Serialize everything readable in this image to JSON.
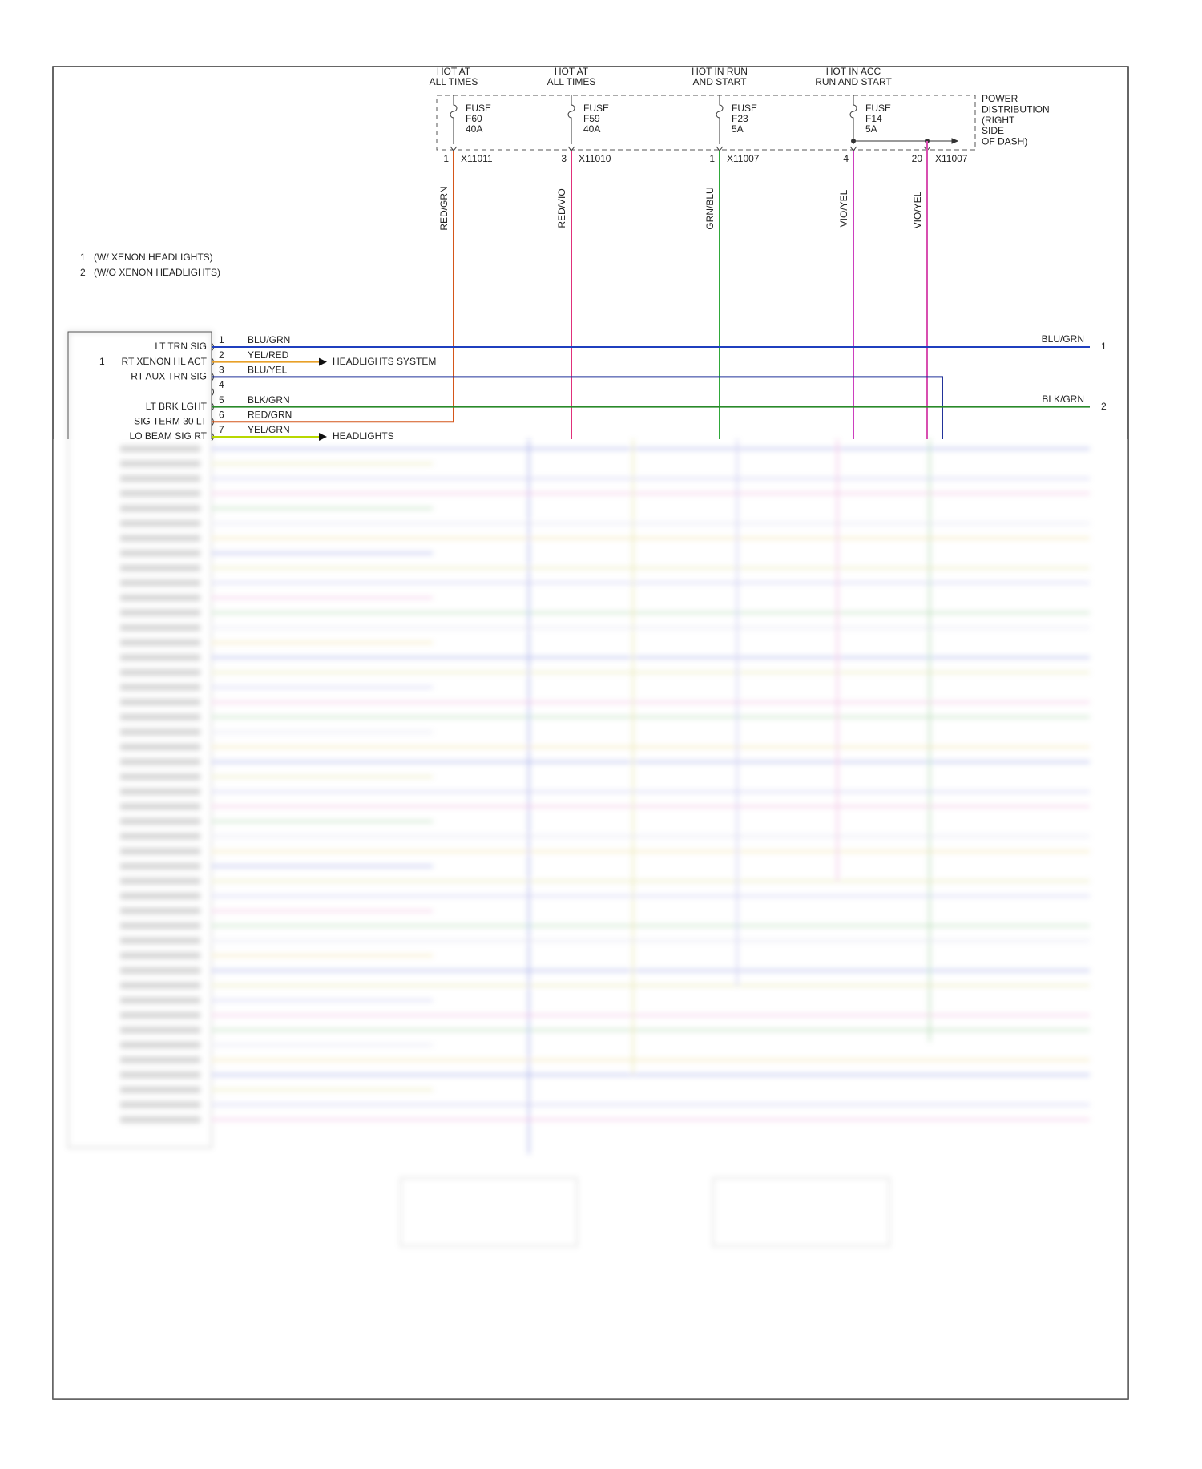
{
  "fuse_columns": [
    {
      "header": [
        "HOT AT",
        "ALL TIMES"
      ],
      "fuse": [
        "FUSE",
        "F60",
        "40A"
      ],
      "pin": "1",
      "connector": "X11011",
      "wire": "RED/GRN"
    },
    {
      "header": [
        "HOT AT",
        "ALL TIMES"
      ],
      "fuse": [
        "FUSE",
        "F59",
        "40A"
      ],
      "pin": "3",
      "connector": "X11010",
      "wire": "RED/VIO"
    },
    {
      "header": [
        "HOT IN RUN",
        "AND START"
      ],
      "fuse": [
        "FUSE",
        "F23",
        "5A"
      ],
      "pin": "1",
      "connector": "X11007",
      "wire": "GRN/BLU"
    },
    {
      "header": [
        "HOT IN ACC",
        "RUN AND START"
      ],
      "fuse": [
        "FUSE",
        "F14",
        "5A"
      ],
      "pin": "4",
      "wire": "VIO/YEL"
    }
  ],
  "extra_pin": {
    "pin": "20",
    "connector": "X11007",
    "wire": "VIO/YEL"
  },
  "power_distribution": [
    "POWER",
    "DISTRIBUTION",
    "(RIGHT",
    "SIDE",
    "OF DASH)"
  ],
  "notes": [
    {
      "number": "1",
      "text": "(W/ XENON HEADLIGHTS)"
    },
    {
      "number": "2",
      "text": "(W/O XENON HEADLIGHTS)"
    }
  ],
  "module_pins": [
    {
      "pin": "1",
      "label": "LT TRN SIG",
      "wire": "BLU/GRN",
      "right_label": "BLU/GRN",
      "right_number": "1"
    },
    {
      "pin": "2",
      "note": "1",
      "label": "RT XENON HL ACT",
      "wire": "YEL/RED",
      "destination": "HEADLIGHTS SYSTEM"
    },
    {
      "pin": "3",
      "label": "RT AUX TRN SIG",
      "wire": "BLU/YEL"
    },
    {
      "pin": "4"
    },
    {
      "pin": "5",
      "label": "LT BRK LGHT",
      "wire": "BLK/GRN",
      "right_label": "BLK/GRN",
      "right_number": "2"
    },
    {
      "pin": "6",
      "label": "SIG TERM 30 LT",
      "wire": "RED/GRN"
    },
    {
      "pin": "7",
      "label": "LO BEAM SIG RT",
      "wire": "YEL/GRN",
      "destination": "HEADLIGHTS"
    }
  ]
}
